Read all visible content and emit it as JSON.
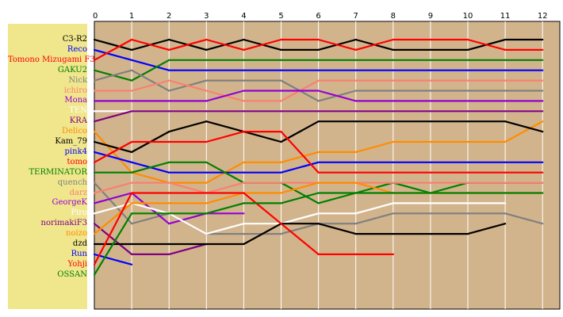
{
  "chart_data": {
    "type": "line",
    "title": "",
    "xlabel": "",
    "ylabel": "",
    "xlim": [
      0,
      12
    ],
    "x_ticks": [
      "0",
      "1",
      "2",
      "3",
      "4",
      "5",
      "6",
      "7",
      "8",
      "9",
      "10",
      "11",
      "12"
    ],
    "y_inverted": true,
    "grid": true,
    "grid_axis": "x",
    "legend_position": "left",
    "plot_background": "#d2b48c",
    "legend_background": "#f0e68c",
    "series": [
      {
        "name": "C3-R2",
        "color": "#000000",
        "values": [
          1,
          2,
          1,
          2,
          1,
          2,
          2,
          1,
          2,
          2,
          2,
          1,
          1
        ]
      },
      {
        "name": "Reco",
        "color": "#0000ff",
        "values": [
          2,
          3,
          4,
          4,
          4,
          4,
          4,
          4,
          4,
          4,
          4,
          4,
          4
        ]
      },
      {
        "name": "Tomono Mizugami F3",
        "color": "#ff0000",
        "values": [
          3,
          1,
          2,
          1,
          2,
          1,
          1,
          2,
          1,
          1,
          1,
          2,
          2
        ]
      },
      {
        "name": "GAKU2",
        "color": "#008000",
        "values": [
          4,
          5,
          3,
          3,
          3,
          3,
          3,
          3,
          3,
          3,
          3,
          3,
          3
        ]
      },
      {
        "name": "Nick",
        "color": "#808080",
        "values": [
          5,
          4,
          6,
          5,
          5,
          5,
          7,
          6,
          6,
          6,
          6,
          6,
          6
        ]
      },
      {
        "name": "ichiro",
        "color": "#fa8072",
        "values": [
          6,
          6,
          5,
          6,
          7,
          7,
          5,
          5,
          5,
          5,
          5,
          5,
          5
        ]
      },
      {
        "name": "Mona",
        "color": "#9400d3",
        "values": [
          7,
          7,
          7,
          7,
          6,
          6,
          6,
          7,
          7,
          7,
          7,
          7,
          7
        ]
      },
      {
        "name": "TEN",
        "color": "#ffffff",
        "values": [
          8,
          8,
          8,
          8,
          8,
          8,
          8,
          8,
          8,
          8,
          8,
          8,
          8
        ]
      },
      {
        "name": "KRA",
        "color": "#800080",
        "values": [
          9,
          8,
          8,
          8,
          8,
          8,
          8,
          8,
          8,
          8,
          8,
          8,
          8
        ]
      },
      {
        "name": "Delico",
        "color": "#ff8c00",
        "values": [
          10,
          14,
          15,
          15,
          13,
          13,
          12,
          12,
          11,
          11,
          11,
          11,
          9
        ]
      },
      {
        "name": "Kam_79",
        "color": "#000000",
        "values": [
          11,
          12,
          10,
          9,
          10,
          11,
          9,
          9,
          9,
          9,
          9,
          9,
          10
        ]
      },
      {
        "name": "pink4",
        "color": "#0000ff",
        "values": [
          12,
          13,
          14,
          14,
          14,
          14,
          13,
          13,
          13,
          13,
          13,
          13,
          13
        ]
      },
      {
        "name": "tomo",
        "color": "#ff0000",
        "values": [
          13,
          11,
          11,
          11,
          10,
          10,
          14,
          14,
          14,
          14,
          14,
          14,
          14
        ]
      },
      {
        "name": "TERMINATOR",
        "color": "#008000",
        "values": [
          14,
          14,
          13,
          13,
          15,
          15,
          17,
          16,
          15,
          16,
          15,
          15,
          15
        ]
      },
      {
        "name": "quench",
        "color": "#808080",
        "values": [
          15,
          19,
          18,
          20,
          20,
          20,
          19,
          19,
          18,
          18,
          18,
          18,
          19
        ]
      },
      {
        "name": "darz",
        "color": "#fa8072",
        "values": [
          16,
          15,
          15,
          16,
          15,
          15,
          15,
          15,
          15,
          15,
          15,
          15,
          15
        ]
      },
      {
        "name": "GeorgeK",
        "color": "#9400d3",
        "values": [
          17,
          16,
          19,
          18,
          18
        ]
      },
      {
        "name": "Piro",
        "color": "#ffffff",
        "values": [
          18,
          17,
          18,
          20,
          19,
          19,
          18,
          18,
          17,
          17,
          17,
          17
        ]
      },
      {
        "name": "norimakiF3",
        "color": "#800080",
        "values": [
          19,
          22,
          22,
          21
        ]
      },
      {
        "name": "noizo",
        "color": "#ff8c00",
        "values": [
          20,
          17,
          17,
          17,
          16,
          16,
          15,
          15,
          16,
          16,
          16,
          16,
          16
        ]
      },
      {
        "name": "dzd",
        "color": "#000000",
        "values": [
          21,
          21,
          21,
          21,
          21,
          19,
          19,
          20,
          20,
          20,
          20,
          19
        ]
      },
      {
        "name": "Run",
        "color": "#0000ff",
        "values": [
          22,
          23
        ]
      },
      {
        "name": "Yohji",
        "color": "#ff0000",
        "values": [
          23,
          16,
          16,
          16,
          16,
          19,
          22,
          22,
          22
        ]
      },
      {
        "name": "OSSAN",
        "color": "#008000",
        "values": [
          24,
          18,
          18,
          18,
          17,
          17,
          16,
          16,
          16,
          16,
          16,
          16,
          16
        ]
      }
    ]
  }
}
